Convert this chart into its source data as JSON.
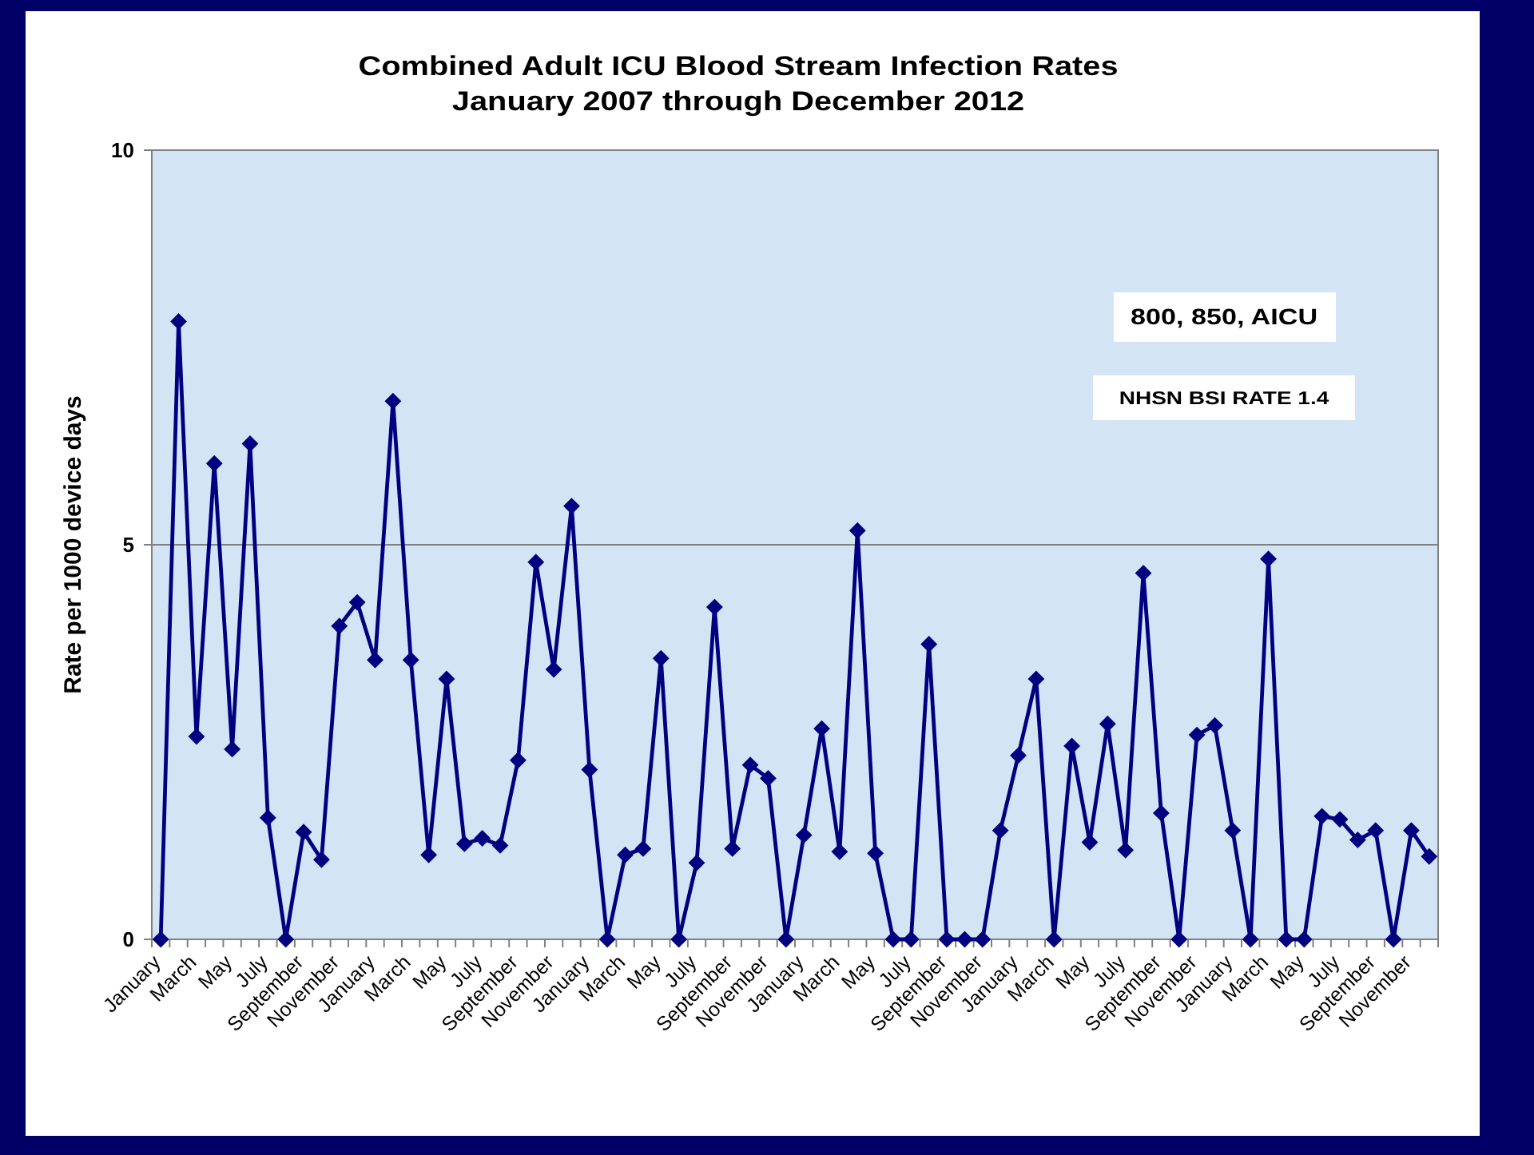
{
  "chart_data": {
    "type": "line",
    "title": "Combined Adult ICU Blood Stream Infection Rates",
    "subtitle": "January 2007 through December 2012",
    "ylabel": "Rate per 1000 device days",
    "categories": [
      "January",
      null,
      "March",
      null,
      "May",
      null,
      "July",
      null,
      "September",
      null,
      "November",
      null,
      "January",
      null,
      "March",
      null,
      "May",
      null,
      "July",
      null,
      "September",
      null,
      "November",
      null,
      "January",
      null,
      "March",
      null,
      "May",
      null,
      "July",
      null,
      "September",
      null,
      "November",
      null,
      "January",
      null,
      "March",
      null,
      "May",
      null,
      "July",
      null,
      "September",
      null,
      "November",
      null,
      "January",
      null,
      "March",
      null,
      "May",
      null,
      "July",
      null,
      "September",
      null,
      "November",
      null,
      "January",
      null,
      "March",
      null,
      "May",
      null,
      "July",
      null,
      "September",
      null,
      "November",
      null
    ],
    "series": [
      {
        "color": "#000080",
        "values": [
          0,
          7.83,
          2.57,
          6.03,
          2.41,
          6.28,
          1.54,
          0,
          1.36,
          1.01,
          3.97,
          4.27,
          3.54,
          6.82,
          3.54,
          1.07,
          3.3,
          1.21,
          1.28,
          1.19,
          2.27,
          4.78,
          3.42,
          5.49,
          2.15,
          0,
          1.07,
          1.15,
          3.56,
          0,
          0.97,
          4.21,
          1.15,
          2.21,
          2.04,
          0,
          1.32,
          2.67,
          1.11,
          5.18,
          1.09,
          0,
          0,
          3.74,
          0,
          0,
          0,
          1.38,
          2.33,
          3.3,
          0,
          2.45,
          1.23,
          2.73,
          1.13,
          4.64,
          1.6,
          0,
          2.59,
          2.71,
          1.38,
          0,
          4.82,
          0,
          0,
          1.56,
          1.52,
          1.26,
          1.38,
          0,
          1.38,
          1.05
        ]
      }
    ],
    "ylim": [
      0,
      10
    ],
    "yticks": [
      0,
      5,
      10
    ],
    "grid": "y",
    "marker": "diamond",
    "line_style": "solid",
    "annotations": [
      "800, 850, AICU",
      "NHSN BSI RATE 1.4"
    ]
  }
}
